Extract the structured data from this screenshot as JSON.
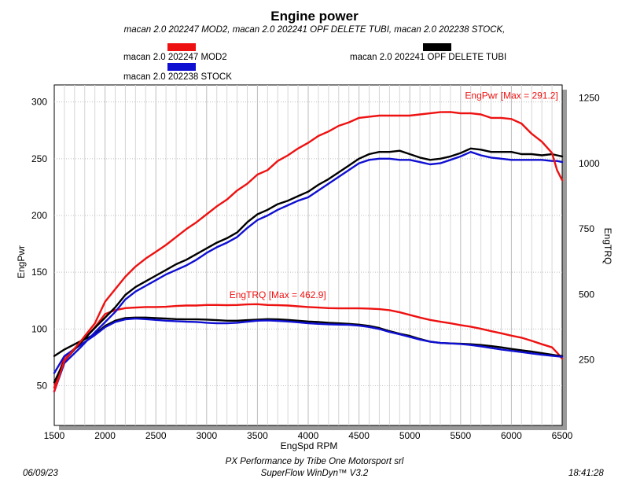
{
  "chart_data": {
    "type": "line",
    "title": "Engine power",
    "subtitle": "macan 2.0 202247 MOD2, macan 2.0 202241 OPF DELETE TUBI, macan 2.0 202238 STOCK,",
    "xlabel": "EngSpd RPM",
    "ylabel_left": "EngPwr",
    "ylabel_right": "EngTRQ",
    "xlim": [
      1500,
      6500
    ],
    "ylim_left": [
      15,
      315
    ],
    "ylim_right": [
      0,
      1300
    ],
    "x_ticks": [
      1500,
      2000,
      2500,
      3000,
      3500,
      4000,
      4500,
      5000,
      5500,
      6000,
      6500
    ],
    "y_ticks_left": [
      50,
      100,
      150,
      200,
      250,
      300
    ],
    "y_ticks_right": [
      250,
      500,
      750,
      1000,
      1250
    ],
    "legend": [
      {
        "name": "macan 2.0 202247 MOD2",
        "color": "#ee1111"
      },
      {
        "name": "macan 2.0 202241 OPF DELETE TUBI",
        "color": "#000000"
      },
      {
        "name": "macan 2.0 202238 STOCK",
        "color": "#0f0fd2"
      }
    ],
    "annotations": [
      {
        "text": "EngPwr [Max = 291.2]",
        "x": 6460,
        "y": 303,
        "axis": "left",
        "color": "#ee1111"
      },
      {
        "text": "EngTRQ [Max = 462.9]",
        "x": 3700,
        "y": 487,
        "axis": "right",
        "color": "#ee1111"
      }
    ],
    "x": [
      1500,
      1600,
      1750,
      1900,
      2000,
      2100,
      2200,
      2300,
      2400,
      2500,
      2600,
      2700,
      2800,
      2900,
      3000,
      3100,
      3200,
      3300,
      3400,
      3500,
      3600,
      3700,
      3800,
      3900,
      4000,
      4100,
      4200,
      4300,
      4400,
      4500,
      4600,
      4700,
      4800,
      4900,
      5000,
      5100,
      5200,
      5300,
      5400,
      5500,
      5600,
      5700,
      5800,
      5900,
      6000,
      6100,
      6200,
      6300,
      6400,
      6450,
      6500
    ],
    "series": [
      {
        "name": "macan 2.0 202247 MOD2",
        "quantity": "EngPwr",
        "axis": "left",
        "color": "#ee1111",
        "values": [
          45,
          72,
          88,
          105,
          124,
          135,
          146,
          155,
          162,
          168,
          174,
          181,
          188,
          194,
          201,
          208,
          214,
          222,
          228,
          236,
          240,
          248,
          253,
          259,
          264,
          270,
          274,
          279,
          282,
          286,
          287,
          288,
          288,
          288,
          288,
          289,
          290,
          291,
          291.2,
          290,
          290,
          289,
          286,
          286,
          285,
          281,
          272,
          265,
          255,
          240,
          231
        ]
      },
      {
        "name": "macan 2.0 202241 OPF DELETE TUBI",
        "quantity": "EngPwr",
        "axis": "left",
        "color": "#000000",
        "values": [
          53,
          72,
          87,
          101,
          110,
          119,
          130,
          137,
          142,
          147,
          152,
          157,
          161,
          166,
          171,
          176,
          180,
          185,
          194,
          201,
          205,
          210,
          213,
          217,
          221,
          227,
          232,
          238,
          244,
          250,
          254,
          256,
          256,
          257,
          254,
          251,
          249,
          250,
          252,
          255,
          259,
          258,
          256,
          256,
          256,
          254,
          254,
          253,
          254,
          253,
          252
        ]
      },
      {
        "name": "macan 2.0 202238 STOCK",
        "quantity": "EngPwr",
        "axis": "left",
        "color": "#0f0fd2",
        "values": [
          45,
          70,
          83,
          97,
          106,
          115,
          126,
          133,
          138,
          143,
          148,
          152,
          156,
          161,
          167,
          172,
          176,
          181,
          189,
          196,
          200,
          205,
          209,
          213,
          216,
          222,
          228,
          234,
          240,
          246,
          249,
          250,
          250,
          249,
          249,
          247,
          245,
          246,
          249,
          252,
          256,
          253,
          251,
          250,
          249,
          249,
          249,
          249,
          248,
          248,
          247
        ]
      },
      {
        "name": "macan 2.0 202247 MOD2",
        "quantity": "EngTRQ",
        "axis": "right",
        "color": "#ee1111",
        "values": [
          145,
          260,
          310,
          375,
          425,
          440,
          448,
          450,
          452,
          452,
          453,
          456,
          458,
          458,
          460,
          460,
          459,
          460,
          462,
          462.9,
          460,
          459,
          458,
          455,
          452,
          450,
          448,
          447,
          447,
          447,
          446,
          444,
          440,
          432,
          422,
          412,
          403,
          396,
          390,
          383,
          377,
          369,
          360,
          352,
          343,
          335,
          323,
          310,
          298,
          278,
          255
        ]
      },
      {
        "name": "macan 2.0 202241 OPF DELETE TUBI",
        "quantity": "EngTRQ",
        "axis": "right",
        "color": "#000000",
        "values": [
          265,
          290,
          320,
          348,
          380,
          400,
          410,
          412,
          412,
          410,
          408,
          406,
          405,
          405,
          404,
          402,
          400,
          400,
          402,
          404,
          406,
          405,
          403,
          400,
          397,
          395,
          392,
          390,
          388,
          385,
          380,
          372,
          360,
          350,
          342,
          330,
          320,
          315,
          313,
          312,
          310,
          307,
          303,
          298,
          292,
          287,
          282,
          276,
          270,
          267,
          265
        ]
      },
      {
        "name": "macan 2.0 202238 STOCK",
        "quantity": "EngTRQ",
        "axis": "right",
        "color": "#0f0fd2",
        "values": [
          200,
          265,
          305,
          345,
          375,
          395,
          405,
          408,
          406,
          403,
          400,
          398,
          396,
          395,
          392,
          390,
          390,
          392,
          396,
          400,
          401,
          399,
          397,
          394,
          390,
          388,
          386,
          385,
          384,
          381,
          376,
          368,
          357,
          348,
          338,
          328,
          320,
          315,
          313,
          311,
          307,
          302,
          296,
          290,
          285,
          280,
          275,
          270,
          266,
          264,
          262
        ]
      }
    ]
  },
  "footer": {
    "date": "06/09/23",
    "time": "18:41:28",
    "company": "PX Performance by Tribe One Motorsport srl",
    "software": "SuperFlow WinDyn™ V3.2"
  }
}
